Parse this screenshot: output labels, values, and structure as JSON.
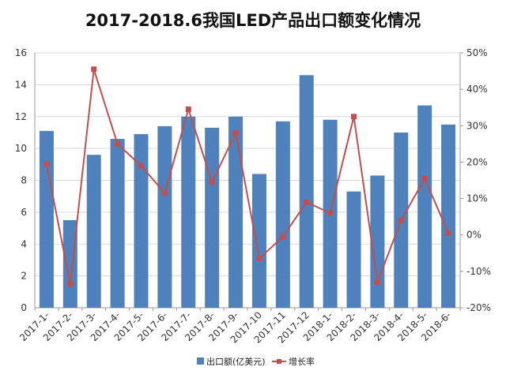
{
  "chart_data": {
    "type": "bar",
    "title": "2017-2018.6我国LED产品出口额变化情况",
    "categories": [
      "2017-1-",
      "2017-2-",
      "2017-3-",
      "2017-4-",
      "2017-5-",
      "2017-6-",
      "2017-7-",
      "2017-8-",
      "2017-9-",
      "2017-10",
      "2017-11",
      "2017-12",
      "2018-1-",
      "2018-2-",
      "2018-3-",
      "2018-4-",
      "2018-5-",
      "2018-6-"
    ],
    "series": [
      {
        "name": "出口额(亿美元)",
        "type": "bar",
        "axis": "left",
        "color": "#4f81bd",
        "values": [
          11.1,
          5.5,
          9.6,
          10.6,
          10.9,
          11.4,
          12.0,
          11.3,
          12.0,
          8.4,
          11.7,
          14.6,
          11.8,
          7.3,
          8.3,
          11.0,
          12.7,
          11.5
        ]
      },
      {
        "name": "增长率",
        "type": "line",
        "axis": "right",
        "color": "#c0504d",
        "values": [
          19.5,
          -13.5,
          45.5,
          25.0,
          19.0,
          11.5,
          34.5,
          14.5,
          28.0,
          -6.5,
          -0.5,
          9.0,
          6.0,
          32.5,
          -13.0,
          4.0,
          15.5,
          0.5
        ]
      }
    ],
    "y_left": {
      "min": 0,
      "max": 16,
      "ticks": [
        "0",
        "2",
        "4",
        "6",
        "8",
        "10",
        "12",
        "14",
        "16"
      ]
    },
    "y_right": {
      "min": -20,
      "max": 50,
      "ticks": [
        "-20%",
        "-10%",
        "0%",
        "10%",
        "20%",
        "30%",
        "40%",
        "50%"
      ]
    },
    "grid": true,
    "legend_position": "bottom"
  }
}
